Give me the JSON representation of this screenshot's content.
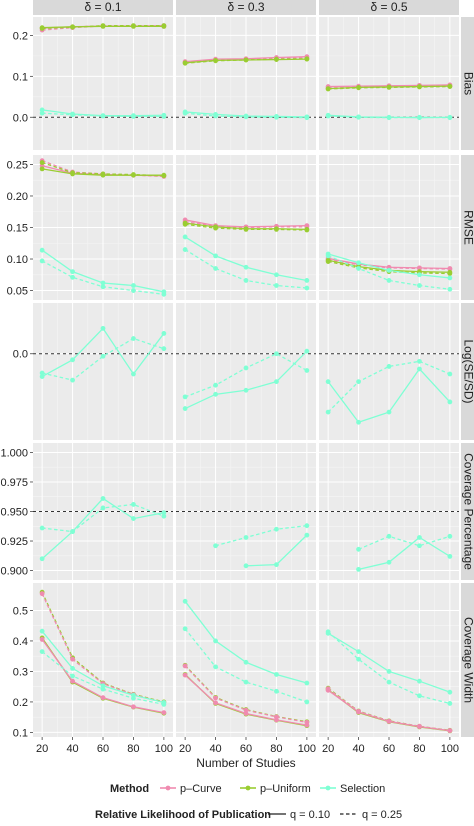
{
  "chart_data": {
    "type": "line",
    "x_label": "Number of Studies",
    "x_ticks": [
      20,
      40,
      60,
      80,
      100
    ],
    "columns": [
      "δ = 0.1",
      "δ = 0.3",
      "δ = 0.5"
    ],
    "colors": {
      "p-Curve": "#f08bb0",
      "p-Uniform": "#9acd32",
      "Selection": "#7fffd4"
    },
    "legend": {
      "method_title": "Method",
      "methods": [
        "p–Curve",
        "p–Uniform",
        "Selection"
      ],
      "q_title": "Relative Likelihood of Publication",
      "q_solid": "q = 0.10",
      "q_dashed": "q = 0.25"
    },
    "rows": [
      {
        "label": "Bias",
        "ylim": [
          -0.08,
          0.245
        ],
        "ticks": [
          0.0,
          0.1,
          0.2
        ],
        "ticklabels": [
          "0.0",
          "0.1",
          "0.2"
        ],
        "refline": 0.0,
        "panels": [
          [
            {
              "method": "p-Curve",
              "q": "0.10",
              "y": [
                0.218,
                0.221,
                0.223,
                0.223,
                0.224
              ]
            },
            {
              "method": "p-Curve",
              "q": "0.25",
              "y": [
                0.213,
                0.219,
                0.223,
                0.223,
                0.222
              ]
            },
            {
              "method": "p-Uniform",
              "q": "0.10",
              "y": [
                0.219,
                0.221,
                0.222,
                0.222,
                0.222
              ]
            },
            {
              "method": "p-Uniform",
              "q": "0.25",
              "y": [
                0.217,
                0.22,
                0.224,
                0.224,
                0.224
              ]
            },
            {
              "method": "Selection",
              "q": "0.10",
              "y": [
                0.018,
                0.008,
                0.004,
                0.004,
                0.005
              ]
            },
            {
              "method": "Selection",
              "q": "0.25",
              "y": [
                0.01,
                0.006,
                0.003,
                0.002,
                0.002
              ]
            }
          ],
          [
            {
              "method": "p-Curve",
              "q": "0.10",
              "y": [
                0.136,
                0.142,
                0.143,
                0.146,
                0.148
              ]
            },
            {
              "method": "p-Curve",
              "q": "0.25",
              "y": [
                0.134,
                0.14,
                0.142,
                0.144,
                0.146
              ]
            },
            {
              "method": "p-Uniform",
              "q": "0.10",
              "y": [
                0.133,
                0.139,
                0.14,
                0.141,
                0.142
              ]
            },
            {
              "method": "p-Uniform",
              "q": "0.25",
              "y": [
                0.132,
                0.138,
                0.14,
                0.142,
                0.143
              ]
            },
            {
              "method": "Selection",
              "q": "0.10",
              "y": [
                0.013,
                0.007,
                0.003,
                0.002,
                0.001
              ]
            },
            {
              "method": "Selection",
              "q": "0.25",
              "y": [
                0.01,
                0.003,
                0.001,
                0.0,
                -0.001
              ]
            }
          ],
          [
            {
              "method": "p-Curve",
              "q": "0.10",
              "y": [
                0.075,
                0.076,
                0.077,
                0.078,
                0.079
              ]
            },
            {
              "method": "p-Curve",
              "q": "0.25",
              "y": [
                0.073,
                0.075,
                0.076,
                0.077,
                0.078
              ]
            },
            {
              "method": "p-Uniform",
              "q": "0.10",
              "y": [
                0.07,
                0.073,
                0.074,
                0.075,
                0.076
              ]
            },
            {
              "method": "p-Uniform",
              "q": "0.25",
              "y": [
                0.069,
                0.072,
                0.073,
                0.074,
                0.075
              ]
            },
            {
              "method": "Selection",
              "q": "0.10",
              "y": [
                0.005,
                0.001,
                0.0,
                -0.001,
                0.0
              ]
            },
            {
              "method": "Selection",
              "q": "0.25",
              "y": [
                0.003,
                0.0,
                -0.001,
                0.0,
                -0.001
              ]
            }
          ]
        ]
      },
      {
        "label": "RMSE",
        "ylim": [
          0.035,
          0.265
        ],
        "ticks": [
          0.05,
          0.1,
          0.15,
          0.2,
          0.25
        ],
        "ticklabels": [
          "0.05",
          "0.10",
          "0.15",
          "0.20",
          "0.25"
        ],
        "panels": [
          [
            {
              "method": "p-Curve",
              "q": "0.10",
              "y": [
                0.248,
                0.236,
                0.234,
                0.233,
                0.232
              ]
            },
            {
              "method": "p-Curve",
              "q": "0.25",
              "y": [
                0.256,
                0.238,
                0.235,
                0.233,
                0.231
              ]
            },
            {
              "method": "p-Uniform",
              "q": "0.10",
              "y": [
                0.243,
                0.235,
                0.233,
                0.233,
                0.233
              ]
            },
            {
              "method": "p-Uniform",
              "q": "0.25",
              "y": [
                0.253,
                0.237,
                0.235,
                0.234,
                0.232
              ]
            },
            {
              "method": "Selection",
              "q": "0.10",
              "y": [
                0.114,
                0.08,
                0.062,
                0.058,
                0.048
              ]
            },
            {
              "method": "Selection",
              "q": "0.25",
              "y": [
                0.097,
                0.071,
                0.056,
                0.05,
                0.044
              ]
            }
          ],
          [
            {
              "method": "p-Curve",
              "q": "0.10",
              "y": [
                0.162,
                0.153,
                0.151,
                0.152,
                0.153
              ]
            },
            {
              "method": "p-Curve",
              "q": "0.25",
              "y": [
                0.159,
                0.152,
                0.15,
                0.151,
                0.151
              ]
            },
            {
              "method": "p-Uniform",
              "q": "0.10",
              "y": [
                0.157,
                0.151,
                0.148,
                0.148,
                0.147
              ]
            },
            {
              "method": "p-Uniform",
              "q": "0.25",
              "y": [
                0.155,
                0.149,
                0.147,
                0.147,
                0.146
              ]
            },
            {
              "method": "Selection",
              "q": "0.10",
              "y": [
                0.135,
                0.105,
                0.087,
                0.075,
                0.066
              ]
            },
            {
              "method": "Selection",
              "q": "0.25",
              "y": [
                0.115,
                0.085,
                0.066,
                0.058,
                0.054
              ]
            }
          ],
          [
            {
              "method": "p-Curve",
              "q": "0.10",
              "y": [
                0.101,
                0.092,
                0.087,
                0.086,
                0.085
              ]
            },
            {
              "method": "p-Curve",
              "q": "0.25",
              "y": [
                0.099,
                0.091,
                0.086,
                0.085,
                0.084
              ]
            },
            {
              "method": "p-Uniform",
              "q": "0.10",
              "y": [
                0.098,
                0.088,
                0.082,
                0.08,
                0.079
              ]
            },
            {
              "method": "p-Uniform",
              "q": "0.25",
              "y": [
                0.096,
                0.086,
                0.08,
                0.078,
                0.077
              ]
            },
            {
              "method": "Selection",
              "q": "0.10",
              "y": [
                0.108,
                0.094,
                0.082,
                0.075,
                0.07
              ]
            },
            {
              "method": "Selection",
              "q": "0.25",
              "y": [
                0.105,
                0.085,
                0.066,
                0.058,
                0.052
              ]
            }
          ]
        ]
      },
      {
        "label": "Log(SE/SD)",
        "ylim": [
          -0.17,
          0.1
        ],
        "ticks": [
          0.0
        ],
        "ticklabels": [
          "0.0"
        ],
        "refline": 0.0,
        "panels": [
          [
            {
              "method": "Selection",
              "q": "0.10",
              "y": [
                -0.045,
                -0.012,
                0.05,
                -0.04,
                0.04
              ]
            },
            {
              "method": "Selection",
              "q": "0.25",
              "y": [
                -0.038,
                -0.052,
                -0.005,
                0.03,
                0.01
              ]
            }
          ],
          [
            {
              "method": "Selection",
              "q": "0.10",
              "y": [
                -0.108,
                -0.08,
                -0.072,
                -0.055,
                0.005
              ]
            },
            {
              "method": "Selection",
              "q": "0.25",
              "y": [
                -0.085,
                -0.062,
                -0.028,
                0.0,
                -0.033
              ]
            }
          ],
          [
            {
              "method": "Selection",
              "q": "0.10",
              "y": [
                -0.055,
                -0.135,
                -0.115,
                -0.03,
                -0.095
              ]
            },
            {
              "method": "Selection",
              "q": "0.25",
              "y": [
                -0.115,
                -0.055,
                -0.025,
                -0.015,
                -0.04
              ]
            }
          ]
        ]
      },
      {
        "label": "Coverage Percentage",
        "ylim": [
          0.892,
          1.008
        ],
        "ticks": [
          0.9,
          0.925,
          0.95,
          0.975,
          1.0
        ],
        "ticklabels": [
          "0.900",
          "0.925",
          "0.950",
          "0.975",
          "1.000"
        ],
        "refline": 0.95,
        "panels": [
          [
            {
              "method": "Selection",
              "q": "0.10",
              "y": [
                0.91,
                0.933,
                0.961,
                0.944,
                0.949
              ]
            },
            {
              "method": "Selection",
              "q": "0.25",
              "y": [
                0.936,
                0.933,
                0.953,
                0.956,
                0.946
              ]
            }
          ],
          [
            {
              "method": "Selection",
              "q": "0.10",
              "y": [
                null,
                null,
                0.904,
                0.905,
                0.93
              ]
            },
            {
              "method": "Selection",
              "q": "0.25",
              "y": [
                null,
                0.921,
                0.928,
                0.935,
                0.938
              ]
            }
          ],
          [
            {
              "method": "Selection",
              "q": "0.10",
              "y": [
                null,
                0.901,
                0.907,
                0.928,
                0.912
              ]
            },
            {
              "method": "Selection",
              "q": "0.25",
              "y": [
                null,
                0.918,
                0.929,
                0.921,
                0.929
              ]
            }
          ]
        ]
      },
      {
        "label": "Coverage Width",
        "ylim": [
          0.085,
          0.59
        ],
        "ticks": [
          0.1,
          0.2,
          0.3,
          0.4,
          0.5
        ],
        "ticklabels": [
          "0.1",
          "0.2",
          "0.3",
          "0.4",
          "0.5"
        ],
        "panels": [
          [
            {
              "method": "p-Uniform",
              "q": "0.10",
              "y": [
                0.41,
                0.265,
                0.212,
                0.183,
                0.163
              ]
            },
            {
              "method": "p-Uniform",
              "q": "0.25",
              "y": [
                0.56,
                0.345,
                0.262,
                0.225,
                0.2
              ]
            },
            {
              "method": "p-Curve",
              "q": "0.10",
              "y": [
                0.405,
                0.268,
                0.214,
                0.184,
                0.165
              ]
            },
            {
              "method": "p-Curve",
              "q": "0.25",
              "y": [
                0.555,
                0.34,
                0.26,
                0.224,
                0.198
              ]
            },
            {
              "method": "Selection",
              "q": "0.10",
              "y": [
                0.432,
                0.31,
                0.253,
                0.222,
                0.198
              ]
            },
            {
              "method": "Selection",
              "q": "0.25",
              "y": [
                0.365,
                0.285,
                0.242,
                0.212,
                0.192
              ]
            }
          ],
          [
            {
              "method": "p-Uniform",
              "q": "0.10",
              "y": [
                0.29,
                0.195,
                0.16,
                0.14,
                0.122
              ]
            },
            {
              "method": "p-Uniform",
              "q": "0.25",
              "y": [
                0.32,
                0.215,
                0.175,
                0.152,
                0.135
              ]
            },
            {
              "method": "p-Curve",
              "q": "0.10",
              "y": [
                0.288,
                0.197,
                0.162,
                0.141,
                0.124
              ]
            },
            {
              "method": "p-Curve",
              "q": "0.25",
              "y": [
                0.318,
                0.213,
                0.173,
                0.151,
                0.133
              ]
            },
            {
              "method": "Selection",
              "q": "0.10",
              "y": [
                0.53,
                0.4,
                0.33,
                0.29,
                0.262
              ]
            },
            {
              "method": "Selection",
              "q": "0.25",
              "y": [
                0.44,
                0.315,
                0.265,
                0.235,
                0.2
              ]
            }
          ],
          [
            {
              "method": "p-Uniform",
              "q": "0.10",
              "y": [
                0.24,
                0.165,
                0.135,
                0.118,
                0.105
              ]
            },
            {
              "method": "p-Uniform",
              "q": "0.25",
              "y": [
                0.245,
                0.17,
                0.138,
                0.12,
                0.107
              ]
            },
            {
              "method": "p-Curve",
              "q": "0.10",
              "y": [
                0.238,
                0.167,
                0.136,
                0.119,
                0.106
              ]
            },
            {
              "method": "p-Curve",
              "q": "0.25",
              "y": [
                0.243,
                0.169,
                0.137,
                0.12,
                0.106
              ]
            },
            {
              "method": "Selection",
              "q": "0.10",
              "y": [
                0.425,
                0.365,
                0.3,
                0.268,
                0.232
              ]
            },
            {
              "method": "Selection",
              "q": "0.25",
              "y": [
                0.43,
                0.34,
                0.265,
                0.22,
                0.195
              ]
            }
          ]
        ]
      }
    ]
  }
}
